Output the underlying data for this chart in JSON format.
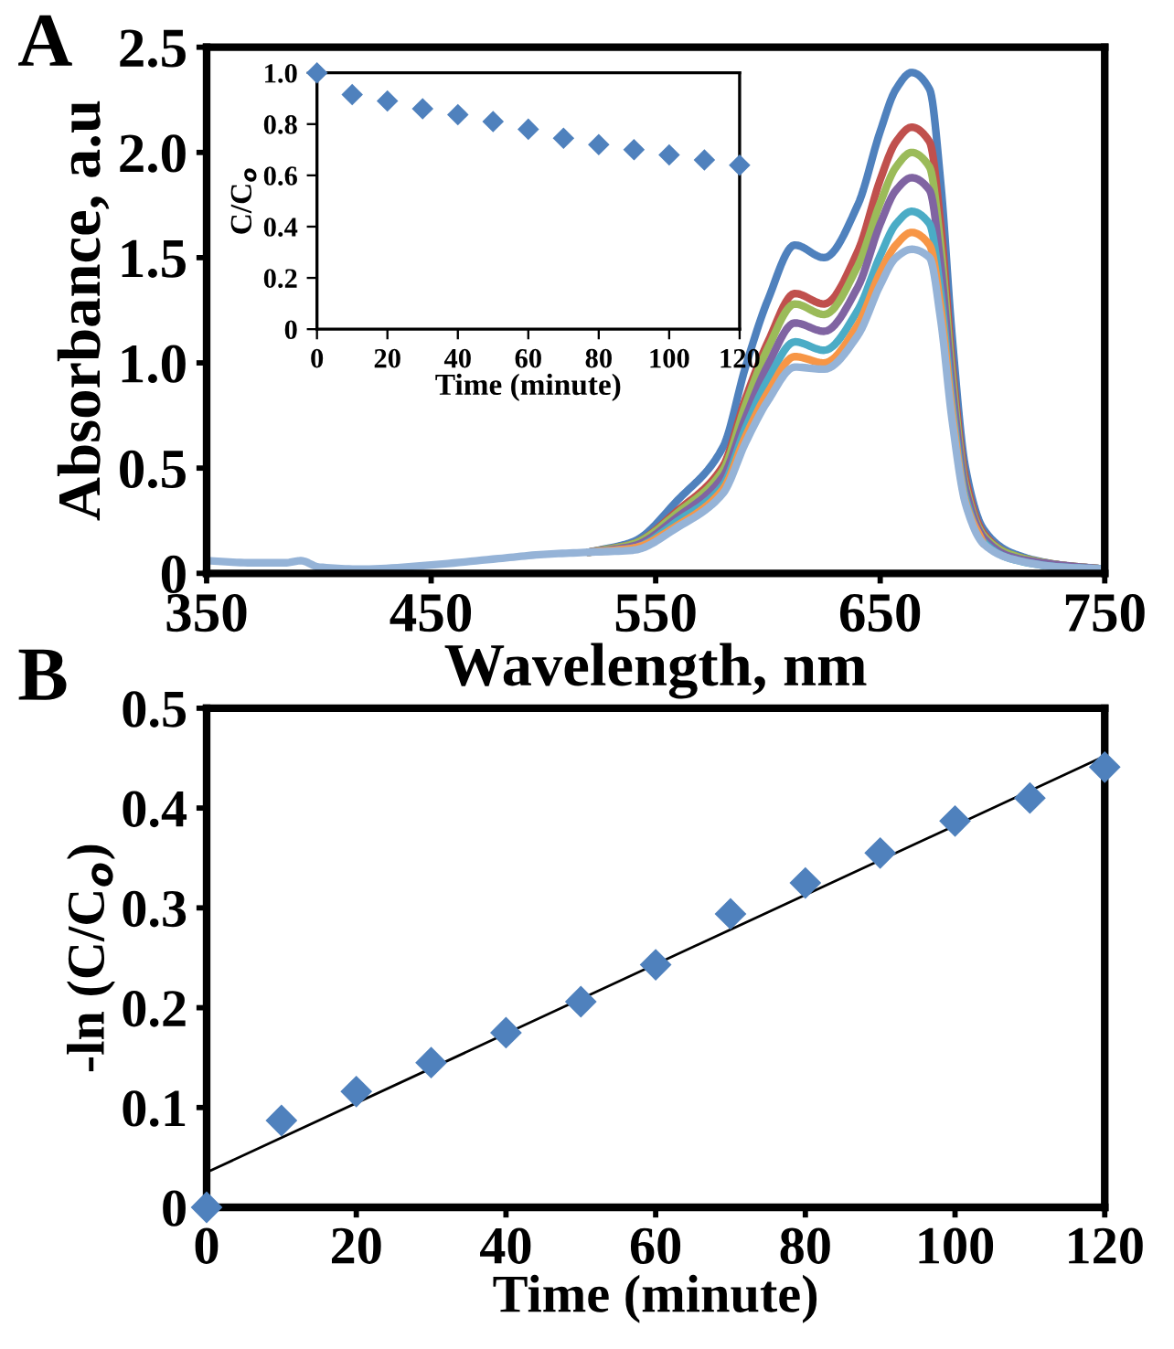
{
  "chart_data": [
    {
      "type": "line",
      "xlabel": "Wavelength, nm",
      "ylabel": "Absorbance, a.u",
      "annotations": [
        "A"
      ],
      "marker": "none",
      "line_style": "solid",
      "xlim": [
        350,
        750
      ],
      "ylim": [
        0,
        2.5
      ],
      "xticks": [
        350,
        450,
        550,
        650,
        750
      ],
      "yticks": [
        0,
        {
          "value": 0.5,
          "label": "0.5"
        },
        {
          "value": 1,
          "label": "1.0"
        },
        {
          "value": 1.5,
          "label": "1.5"
        },
        {
          "value": 2,
          "label": "2.0"
        },
        {
          "value": 2.5,
          "label": "2.5"
        }
      ],
      "x": [
        350,
        370,
        385,
        392,
        400,
        420,
        450,
        480,
        500,
        520,
        540,
        560,
        580,
        590,
        600,
        612,
        625,
        640,
        650,
        657,
        664,
        672,
        677,
        682,
        688,
        696,
        708,
        730,
        750
      ],
      "series": [
        {
          "color": "#4f81bd",
          "values": [
            null,
            null,
            null,
            null,
            null,
            null,
            null,
            null,
            null,
            0.1,
            0.15,
            0.35,
            0.6,
            0.98,
            1.3,
            1.56,
            1.5,
            1.75,
            2.1,
            2.3,
            2.38,
            2.3,
            1.85,
            1.13,
            0.5,
            0.21,
            0.1,
            0.04,
            0.02
          ]
        },
        {
          "color": "#c0504d",
          "values": [
            null,
            null,
            null,
            null,
            null,
            null,
            null,
            null,
            null,
            0.1,
            0.14,
            0.3,
            0.51,
            0.83,
            1.1,
            1.33,
            1.28,
            1.53,
            1.87,
            2.05,
            2.12,
            2.05,
            1.65,
            1.0,
            0.45,
            0.19,
            0.09,
            0.04,
            0.02
          ]
        },
        {
          "color": "#9bbb59",
          "values": [
            null,
            null,
            null,
            null,
            null,
            null,
            null,
            null,
            null,
            0.1,
            0.14,
            0.29,
            0.49,
            0.8,
            1.07,
            1.28,
            1.23,
            1.46,
            1.76,
            1.93,
            2.0,
            1.93,
            1.55,
            0.95,
            0.42,
            0.18,
            0.09,
            0.04,
            0.02
          ]
        },
        {
          "color": "#8064a2",
          "values": [
            null,
            null,
            null,
            null,
            null,
            null,
            null,
            null,
            null,
            0.1,
            0.13,
            0.27,
            0.46,
            0.74,
            0.99,
            1.19,
            1.15,
            1.36,
            1.66,
            1.82,
            1.88,
            1.82,
            1.46,
            0.89,
            0.4,
            0.17,
            0.08,
            0.04,
            0.02
          ]
        },
        {
          "color": "#4bacc6",
          "values": [
            null,
            null,
            null,
            null,
            null,
            null,
            null,
            null,
            null,
            0.1,
            0.12,
            0.25,
            0.42,
            0.69,
            0.92,
            1.1,
            1.06,
            1.25,
            1.51,
            1.66,
            1.72,
            1.66,
            1.33,
            0.81,
            0.36,
            0.15,
            0.07,
            0.03,
            0.02
          ]
        },
        {
          "color": "#f79646",
          "values": [
            null,
            null,
            null,
            null,
            null,
            null,
            null,
            null,
            null,
            0.1,
            0.12,
            0.23,
            0.4,
            0.65,
            0.86,
            1.03,
            1.0,
            1.18,
            1.43,
            1.56,
            1.62,
            1.56,
            1.26,
            0.77,
            0.34,
            0.14,
            null,
            null,
            null
          ]
        },
        {
          "color": "#95b3d7",
          "values": [
            0.06,
            0.05,
            0.05,
            0.06,
            0.03,
            0.02,
            0.04,
            0.07,
            0.09,
            0.1,
            0.11,
            0.22,
            0.38,
            0.62,
            0.82,
            0.98,
            0.97,
            1.13,
            1.37,
            1.5,
            1.54,
            1.5,
            1.2,
            0.73,
            0.33,
            0.14,
            0.07,
            0.03,
            0.02
          ]
        }
      ]
    },
    {
      "type": "scatter",
      "xlabel": "Time (minute)",
      "ylabel": "C/C$_{o}$",
      "marker": "diamond",
      "xlim": [
        0,
        120
      ],
      "ylim": [
        0,
        1.0
      ],
      "xticks": [
        0,
        20,
        40,
        60,
        80,
        100,
        120
      ],
      "yticks": [
        0,
        {
          "value": 0.2,
          "label": "0.2"
        },
        {
          "value": 0.4,
          "label": "0.4"
        },
        {
          "value": 0.6,
          "label": "0.6"
        },
        {
          "value": 0.8,
          "label": "0.8"
        },
        {
          "value": 1,
          "label": "1.0"
        }
      ],
      "x": [
        0,
        10,
        20,
        30,
        40,
        50,
        60,
        70,
        80,
        90,
        100,
        110,
        120
      ],
      "series": [
        {
          "color": "#4f81bd",
          "values": [
            1.0,
            0.915,
            0.89,
            0.86,
            0.837,
            0.81,
            0.78,
            0.745,
            0.72,
            0.7,
            0.68,
            0.66,
            0.64
          ]
        }
      ]
    },
    {
      "type": "scatter",
      "xlabel": "Time (minute)",
      "ylabel": "-ln (C/C$_{o}$)",
      "annotations": [
        "B"
      ],
      "marker": "diamond",
      "xlim": [
        0,
        120
      ],
      "ylim": [
        0,
        0.5
      ],
      "xticks": [
        0,
        20,
        40,
        60,
        80,
        100,
        120
      ],
      "yticks": [
        0,
        {
          "value": 0.1,
          "label": "0.1"
        },
        {
          "value": 0.2,
          "label": "0.2"
        },
        {
          "value": 0.3,
          "label": "0.3"
        },
        {
          "value": 0.4,
          "label": "0.4"
        },
        {
          "value": 0.5,
          "label": "0.5"
        }
      ],
      "x": [
        0,
        10,
        20,
        30,
        40,
        50,
        60,
        70,
        80,
        90,
        100,
        110,
        120
      ],
      "series": [
        {
          "color": "#4f81bd",
          "values": [
            0,
            0.087,
            0.116,
            0.145,
            0.175,
            0.206,
            0.243,
            0.294,
            0.325,
            0.355,
            0.387,
            0.41,
            0.441
          ]
        },
        {
          "type": "line",
          "color": "#000000",
          "x": [
            0,
            120
          ],
          "values": [
            0.035,
            0.452
          ],
          "marker": "none"
        }
      ]
    }
  ]
}
